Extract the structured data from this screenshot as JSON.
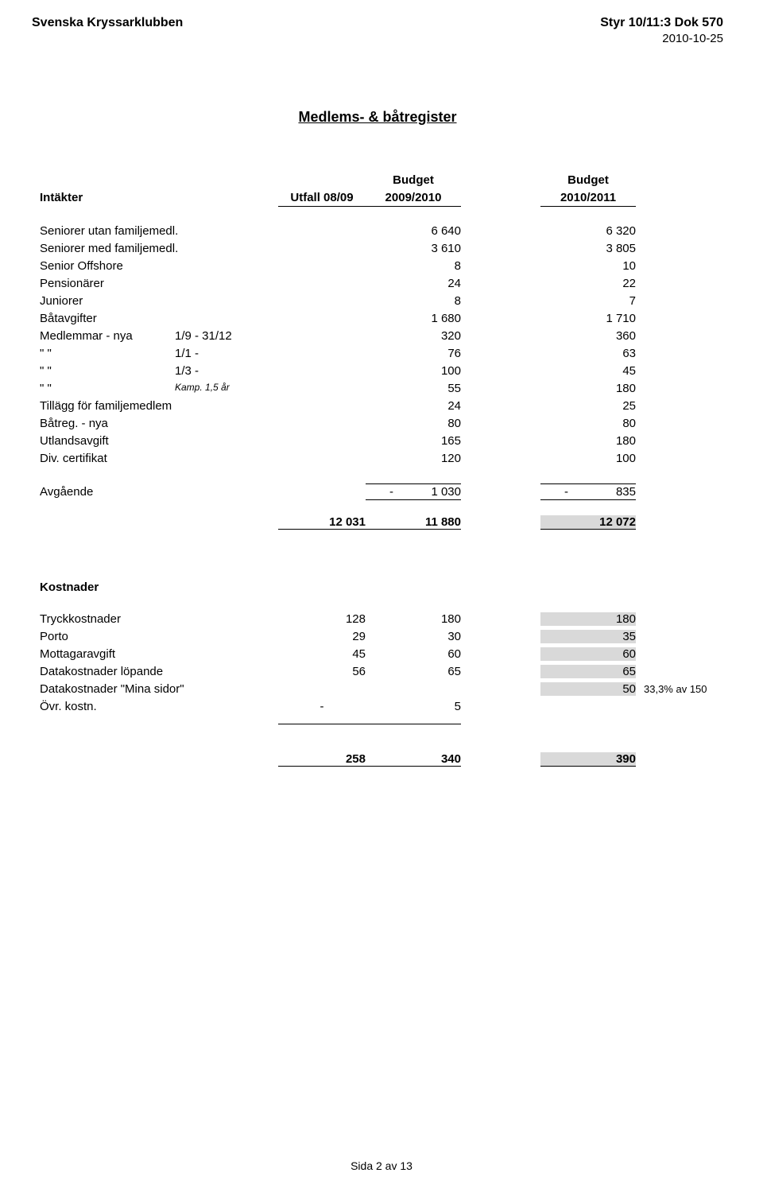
{
  "header": {
    "org": "Svenska Kryssarklubben",
    "docref": "Styr 10/11:3 Dok 570",
    "date": "2010-10-25"
  },
  "title": "Medlems- & båtregister",
  "colheaders": {
    "utfall": "Utfall 08/09",
    "budget_label": "Budget",
    "b1": "2009/2010",
    "b2": "2010/2011"
  },
  "intakter_label": "Intäkter",
  "intakter": [
    {
      "label": "Seniorer utan familjemedl.",
      "sub": "",
      "b1": "6 640",
      "b2": "6 320"
    },
    {
      "label": "Seniorer med familjemedl.",
      "sub": "",
      "b1": "3 610",
      "b2": "3 805"
    },
    {
      "label": "Senior Offshore",
      "sub": "",
      "b1": "8",
      "b2": "10"
    },
    {
      "label": "Pensionärer",
      "sub": "",
      "b1": "24",
      "b2": "22"
    },
    {
      "label": "Juniorer",
      "sub": "",
      "b1": "8",
      "b2": "7"
    },
    {
      "label": "Båtavgifter",
      "sub": "",
      "b1": "1 680",
      "b2": "1 710"
    },
    {
      "label": "Medlemmar - nya",
      "sub": "1/9 - 31/12",
      "b1": "320",
      "b2": "360"
    },
    {
      "label": "   \"          \"",
      "sub": "1/1 -",
      "b1": "76",
      "b2": "63"
    },
    {
      "label": "   \"          \"",
      "sub": "1/3 -",
      "b1": "100",
      "b2": "45"
    },
    {
      "label": "   \"          \"",
      "sub": "Kamp. 1,5 år",
      "sub_italic": true,
      "b1": "55",
      "b2": "180"
    },
    {
      "label": "Tillägg för familjemedlem",
      "sub": "",
      "b1": "24",
      "b2": "25"
    },
    {
      "label": "Båtreg. - nya",
      "sub": "",
      "b1": "80",
      "b2": "80"
    },
    {
      "label": "Utlandsavgift",
      "sub": "",
      "b1": "165",
      "b2": "180"
    },
    {
      "label": "Div. certifikat",
      "sub": "",
      "b1": "120",
      "b2": "100"
    }
  ],
  "avgaende": {
    "label": "Avgående",
    "b1": "1 030",
    "b2": "835"
  },
  "intakter_total": {
    "utfall": "12 031",
    "b1": "11 880",
    "b2": "12 072"
  },
  "kostnader_label": "Kostnader",
  "kostnader": [
    {
      "label": "Tryckkostnader",
      "utfall": "128",
      "b1": "180",
      "b2": "180"
    },
    {
      "label": "Porto",
      "utfall": "29",
      "b1": "30",
      "b2": "35"
    },
    {
      "label": "Mottagaravgift",
      "utfall": "45",
      "b1": "60",
      "b2": "60"
    },
    {
      "label": "Datakostnader löpande",
      "utfall": "56",
      "b1": "65",
      "b2": "65"
    },
    {
      "label": "Datakostnader \"Mina sidor\"",
      "utfall": "",
      "b1": "",
      "b2": "50",
      "note": "33,3% av 150"
    },
    {
      "label": "Övr. kostn.",
      "utfall": "-",
      "b1": "5",
      "b2": ""
    }
  ],
  "kostnader_total": {
    "utfall": "258",
    "b1": "340",
    "b2": "390"
  },
  "footer": "Sida 2 av 13"
}
